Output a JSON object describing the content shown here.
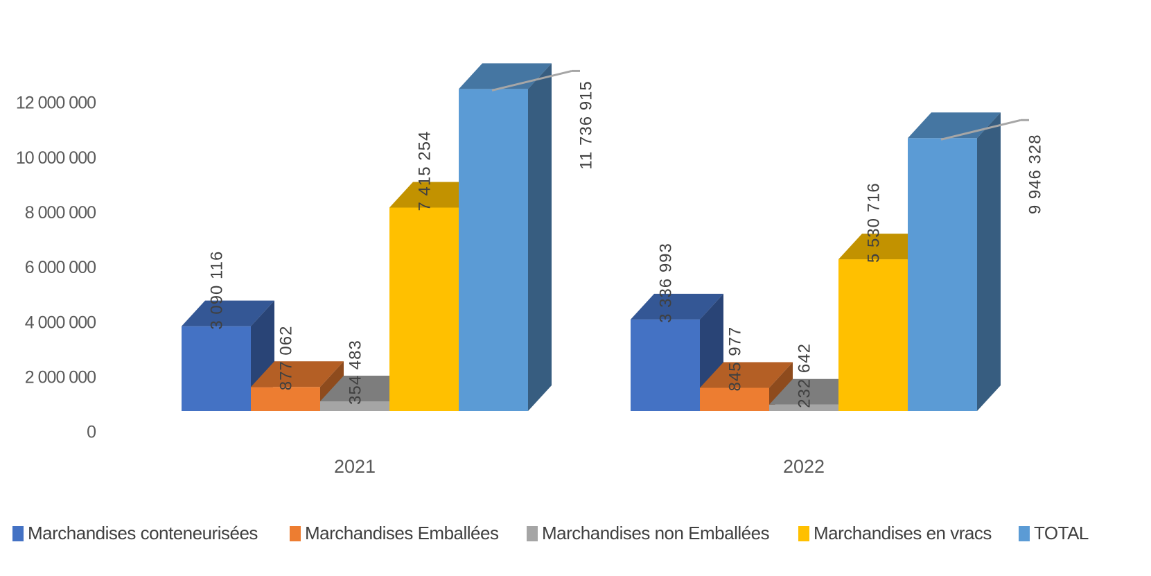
{
  "chart_data": {
    "type": "bar3d",
    "categories": [
      "2021",
      "2022"
    ],
    "series": [
      {
        "name": "Marchandises conteneurisées",
        "color": "#4472c4",
        "values": [
          3090116,
          3336993
        ],
        "value_labels": [
          "3 090 116",
          "3 336 993"
        ]
      },
      {
        "name": "Marchandises Emballées",
        "color": "#ed7d31",
        "values": [
          877062,
          845977
        ],
        "value_labels": [
          "877 062",
          "845 977"
        ]
      },
      {
        "name": "Marchandises non Emballées",
        "color": "#a5a5a5",
        "values": [
          354483,
          232642
        ],
        "value_labels": [
          "354 483",
          "232 642"
        ]
      },
      {
        "name": "Marchandises en vracs",
        "color": "#ffc000",
        "values": [
          7415254,
          5530716
        ],
        "value_labels": [
          "7 415 254",
          "5 530 716"
        ]
      },
      {
        "name": "TOTAL",
        "color": "#5b9bd5",
        "values": [
          11736915,
          9946328
        ],
        "value_labels": [
          "11 736 915",
          "9 946 328"
        ]
      }
    ],
    "ylim": [
      0,
      12000000
    ],
    "yticks": [
      0,
      {
        "value": 2000000,
        "label": "2 000 000"
      },
      {
        "value": 4000000,
        "label": "4 000 000"
      },
      {
        "value": 6000000,
        "label": "6 000 000"
      },
      {
        "value": 8000000,
        "label": "8 000 000"
      },
      {
        "value": 10000000,
        "label": "10 000 000"
      },
      {
        "value": 12000000,
        "label": "12 000 000"
      }
    ],
    "grid": false,
    "legend": "bottom"
  }
}
